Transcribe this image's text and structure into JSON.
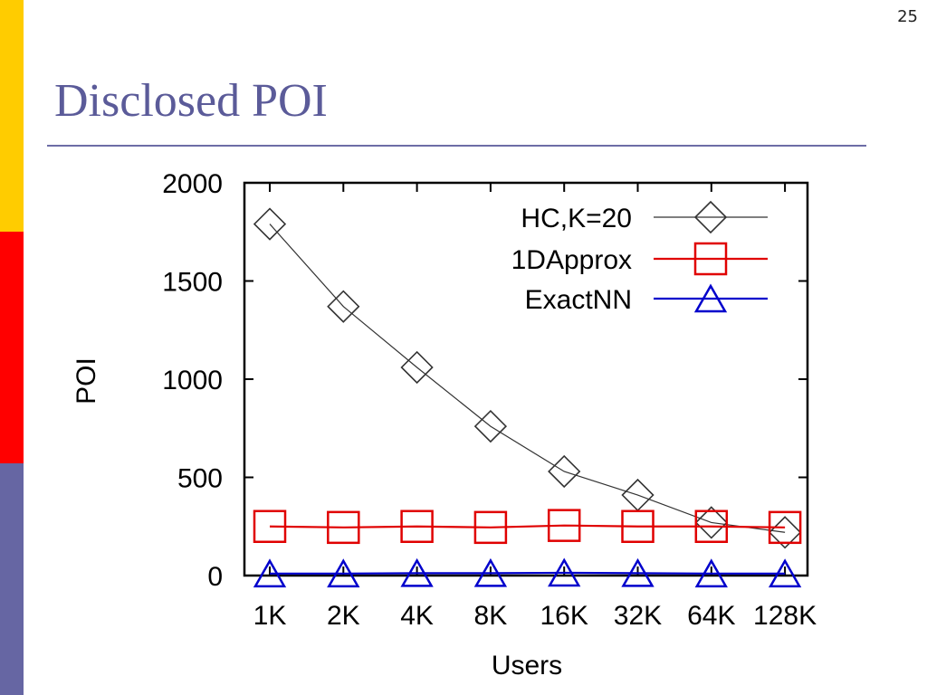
{
  "slide": {
    "number": "25",
    "title": "Disclosed POI"
  },
  "colors": {
    "bar_yellow": "#ffcc00",
    "bar_red": "#ff0000",
    "bar_purple": "#6666a3",
    "title": "#5b5b99"
  },
  "chart_data": {
    "type": "line",
    "categories": [
      "1K",
      "2K",
      "4K",
      "8K",
      "16K",
      "32K",
      "64K",
      "128K"
    ],
    "xlabel": "Users",
    "ylabel": "POI",
    "ylim": [
      0,
      2000
    ],
    "yticks": [
      0,
      500,
      1000,
      1500,
      2000
    ],
    "grid": false,
    "legend_position": "top-right",
    "series": [
      {
        "name": "HC,K=20",
        "marker": "diamond",
        "color": "#000000",
        "values": [
          1790,
          1370,
          1060,
          760,
          530,
          410,
          270,
          220
        ]
      },
      {
        "name": "1DApprox",
        "marker": "square",
        "color": "#e00000",
        "values": [
          250,
          245,
          250,
          245,
          255,
          250,
          250,
          245
        ]
      },
      {
        "name": "ExactNN",
        "marker": "triangle",
        "color": "#0000cc",
        "values": [
          10,
          10,
          12,
          12,
          14,
          12,
          10,
          10
        ]
      }
    ]
  }
}
